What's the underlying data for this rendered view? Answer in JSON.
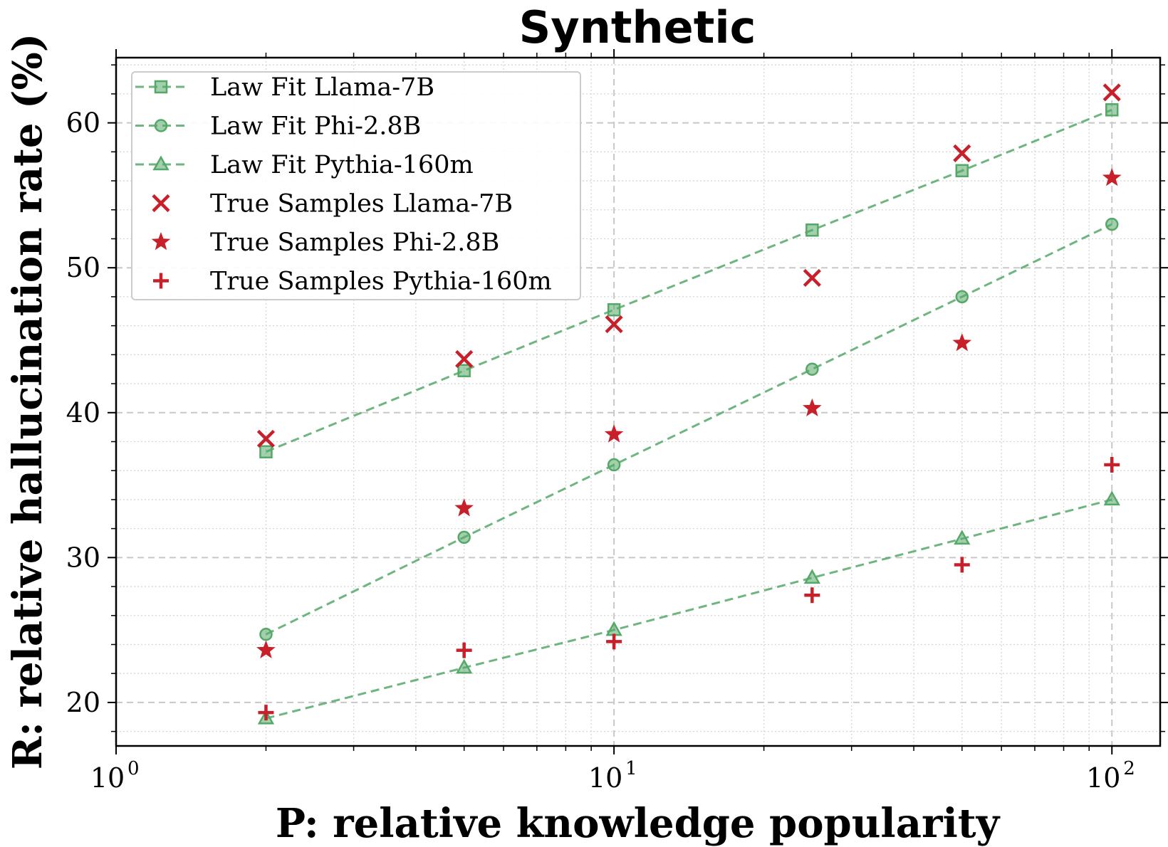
{
  "chart_data": {
    "type": "scatter",
    "title": "Synthetic",
    "xlabel": "P: relative knowledge popularity",
    "ylabel": "R: relative hallucination rate (%)",
    "xscale": "log",
    "xlim": [
      1,
      125
    ],
    "ylim": [
      17,
      64.5
    ],
    "x_ticks": [
      {
        "base": "10",
        "exp": "0"
      },
      {
        "base": "10",
        "exp": "1"
      },
      {
        "base": "10",
        "exp": "2"
      }
    ],
    "y_ticks": [
      "20",
      "30",
      "40",
      "50",
      "60"
    ],
    "grid": true,
    "legend_position": "top-left",
    "colors": {
      "fit": "#55a868",
      "samples": "#c8202a"
    },
    "x": [
      2,
      5,
      10,
      25,
      50,
      100
    ],
    "series": [
      {
        "name": "Law Fit Llama-7B",
        "kind": "fit",
        "marker": "square",
        "values": [
          37.3,
          42.9,
          47.1,
          52.6,
          56.7,
          60.9
        ]
      },
      {
        "name": "Law Fit Phi-2.8B",
        "kind": "fit",
        "marker": "circle",
        "values": [
          24.7,
          31.4,
          36.4,
          43.0,
          48.0,
          53.0
        ]
      },
      {
        "name": "Law Fit Pythia-160m",
        "kind": "fit",
        "marker": "triangle",
        "values": [
          18.9,
          22.4,
          25.0,
          28.6,
          31.3,
          34.0
        ]
      },
      {
        "name": "True Samples Llama-7B",
        "kind": "sample",
        "marker": "x",
        "values": [
          38.2,
          43.7,
          46.1,
          49.3,
          57.9,
          62.1
        ]
      },
      {
        "name": "True Samples Phi-2.8B",
        "kind": "sample",
        "marker": "star",
        "values": [
          23.6,
          33.4,
          38.5,
          40.3,
          44.8,
          56.2
        ]
      },
      {
        "name": "True Samples Pythia-160m",
        "kind": "sample",
        "marker": "plus",
        "values": [
          19.3,
          23.6,
          24.2,
          27.4,
          29.5,
          36.4
        ]
      }
    ]
  }
}
